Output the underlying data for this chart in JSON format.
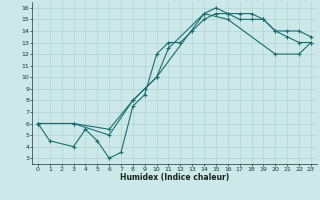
{
  "xlabel": "Humidex (Indice chaleur)",
  "bg_color": "#cce8e8",
  "grid_color": "#aacece",
  "line_color": "#1a6e6e",
  "xlim": [
    -0.5,
    23.5
  ],
  "ylim": [
    2.5,
    16.5
  ],
  "xticks": [
    0,
    1,
    2,
    3,
    4,
    5,
    6,
    7,
    8,
    9,
    10,
    11,
    12,
    13,
    14,
    15,
    16,
    17,
    18,
    19,
    20,
    21,
    22,
    23
  ],
  "yticks": [
    3,
    4,
    5,
    6,
    7,
    8,
    9,
    10,
    11,
    12,
    13,
    14,
    15,
    16
  ],
  "line1_x": [
    0,
    1,
    3,
    4,
    5,
    6,
    7,
    8,
    9,
    10,
    11,
    12,
    13,
    14,
    15,
    16,
    17,
    18,
    19,
    20,
    21,
    22,
    23
  ],
  "line1_y": [
    6,
    4.5,
    4,
    5.5,
    4.5,
    3,
    3.5,
    7.5,
    8.5,
    12,
    13,
    13,
    14,
    15,
    15.5,
    15.5,
    15,
    15,
    15,
    14,
    13.5,
    13,
    13
  ],
  "line2_x": [
    0,
    3,
    6,
    8,
    9,
    10,
    11,
    14,
    15,
    16,
    17,
    18,
    19,
    20,
    21,
    22,
    23
  ],
  "line2_y": [
    6,
    6,
    5.5,
    8,
    9,
    10,
    12.5,
    15.5,
    16,
    15.5,
    15.5,
    15.5,
    15,
    14,
    14,
    14,
    13.5
  ],
  "line3_x": [
    0,
    3,
    6,
    8,
    10,
    14,
    16,
    20,
    22,
    23
  ],
  "line3_y": [
    6,
    6,
    5,
    8,
    10,
    15.5,
    15,
    12,
    12,
    13
  ]
}
